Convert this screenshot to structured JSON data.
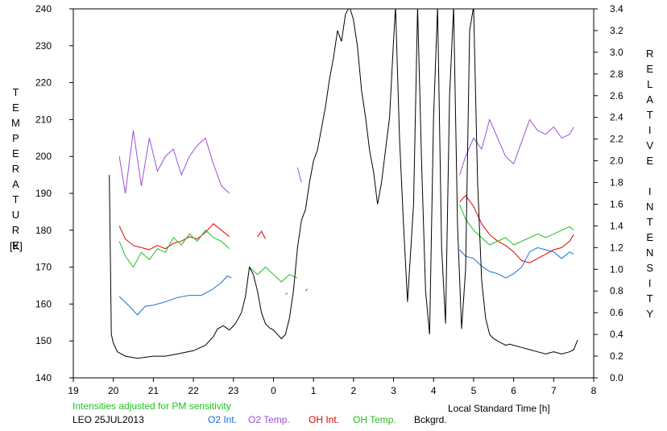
{
  "chart_data": {
    "type": "line",
    "station": "LEO",
    "date": "25JUL2013",
    "note": "Intensities adjusted for PM sensitivity",
    "xlabel": "Local Standard Time [h]",
    "ylabel_left": "TEMPERATURE",
    "ylabel_left_unit": "[K]",
    "ylabel_right": "RELATIVE INTENSITY",
    "x_ticks": [
      "19",
      "20",
      "21",
      "22",
      "23",
      "0",
      "1",
      "2",
      "3",
      "4",
      "5",
      "6",
      "7",
      "8"
    ],
    "y_left_ticks": [
      "140",
      "150",
      "160",
      "170",
      "180",
      "190",
      "200",
      "210",
      "220",
      "230",
      "240"
    ],
    "y_right_ticks": [
      "0.0",
      "0.2",
      "0.4",
      "0.6",
      "0.8",
      "1.0",
      "1.2",
      "1.4",
      "1.6",
      "1.8",
      "2.0",
      "2.2",
      "2.4",
      "2.6",
      "2.8",
      "3.0",
      "3.2",
      "3.4"
    ],
    "xlim": [
      19,
      32
    ],
    "ylim_left": [
      140,
      240
    ],
    "ylim_right": [
      0,
      3.4
    ],
    "grid": false,
    "legend_position": "bottom",
    "series": [
      {
        "name": "O2 Int.",
        "color": "#1a6fd6",
        "axis": "right",
        "segments": [
          [
            [
              20.15,
              0.75
            ],
            [
              20.4,
              0.66
            ],
            [
              20.6,
              0.58
            ],
            [
              20.8,
              0.66
            ],
            [
              21.0,
              0.67
            ],
            [
              21.3,
              0.7
            ],
            [
              21.6,
              0.74
            ],
            [
              21.9,
              0.76
            ],
            [
              22.2,
              0.76
            ],
            [
              22.5,
              0.82
            ],
            [
              22.7,
              0.88
            ],
            [
              22.85,
              0.94
            ],
            [
              22.95,
              0.92
            ]
          ],
          [
            [
              24.3,
              0.77
            ],
            [
              24.35,
              0.78
            ]
          ],
          [
            [
              24.8,
              0.8
            ],
            [
              24.85,
              0.82
            ]
          ],
          [
            [
              28.65,
              1.18
            ],
            [
              28.8,
              1.12
            ],
            [
              29.0,
              1.1
            ],
            [
              29.2,
              1.03
            ],
            [
              29.4,
              0.98
            ],
            [
              29.6,
              0.96
            ],
            [
              29.8,
              0.92
            ],
            [
              30.0,
              0.96
            ],
            [
              30.2,
              1.02
            ],
            [
              30.4,
              1.16
            ],
            [
              30.6,
              1.2
            ],
            [
              30.8,
              1.18
            ],
            [
              31.0,
              1.16
            ],
            [
              31.2,
              1.1
            ],
            [
              31.4,
              1.16
            ],
            [
              31.5,
              1.14
            ]
          ]
        ]
      },
      {
        "name": "O2 Temp.",
        "color": "#9b4fd6",
        "axis": "left",
        "segments": [
          [
            [
              20.15,
              200
            ],
            [
              20.3,
              190
            ],
            [
              20.5,
              207
            ],
            [
              20.7,
              192
            ],
            [
              20.9,
              205
            ],
            [
              21.1,
              196
            ],
            [
              21.3,
              200
            ],
            [
              21.5,
              202
            ],
            [
              21.7,
              195
            ],
            [
              21.9,
              200
            ],
            [
              22.1,
              203
            ],
            [
              22.3,
              205
            ],
            [
              22.5,
              198
            ],
            [
              22.7,
              192
            ],
            [
              22.9,
              190
            ]
          ],
          [
            [
              24.6,
              197
            ],
            [
              24.7,
              193
            ]
          ],
          [
            [
              28.65,
              195
            ],
            [
              28.8,
              200
            ],
            [
              29.0,
              205
            ],
            [
              29.2,
              202
            ],
            [
              29.4,
              210
            ],
            [
              29.6,
              205
            ],
            [
              29.8,
              200
            ],
            [
              30.0,
              198
            ],
            [
              30.2,
              204
            ],
            [
              30.4,
              210
            ],
            [
              30.6,
              207
            ],
            [
              30.8,
              206
            ],
            [
              31.0,
              208
            ],
            [
              31.2,
              205
            ],
            [
              31.4,
              206
            ],
            [
              31.5,
              208
            ]
          ]
        ]
      },
      {
        "name": "OH Int.",
        "color": "#e00000",
        "axis": "right",
        "segments": [
          [
            [
              20.15,
              1.4
            ],
            [
              20.3,
              1.28
            ],
            [
              20.5,
              1.22
            ],
            [
              20.7,
              1.2
            ],
            [
              20.9,
              1.18
            ],
            [
              21.1,
              1.22
            ],
            [
              21.3,
              1.19
            ],
            [
              21.5,
              1.24
            ],
            [
              21.7,
              1.26
            ],
            [
              21.9,
              1.3
            ],
            [
              22.1,
              1.28
            ],
            [
              22.3,
              1.34
            ],
            [
              22.5,
              1.42
            ],
            [
              22.7,
              1.36
            ],
            [
              22.9,
              1.3
            ]
          ],
          [
            [
              23.6,
              1.3
            ],
            [
              23.7,
              1.35
            ],
            [
              23.8,
              1.28
            ]
          ],
          [
            [
              28.65,
              1.62
            ],
            [
              28.8,
              1.68
            ],
            [
              29.0,
              1.58
            ],
            [
              29.2,
              1.42
            ],
            [
              29.4,
              1.32
            ],
            [
              29.6,
              1.26
            ],
            [
              29.8,
              1.22
            ],
            [
              30.0,
              1.16
            ],
            [
              30.2,
              1.08
            ],
            [
              30.4,
              1.06
            ],
            [
              30.6,
              1.1
            ],
            [
              30.8,
              1.14
            ],
            [
              31.0,
              1.18
            ],
            [
              31.2,
              1.2
            ],
            [
              31.4,
              1.26
            ],
            [
              31.5,
              1.32
            ]
          ]
        ]
      },
      {
        "name": "OH Temp.",
        "color": "#22c022",
        "axis": "left",
        "segments": [
          [
            [
              20.15,
              177
            ],
            [
              20.3,
              173
            ],
            [
              20.5,
              170
            ],
            [
              20.7,
              174
            ],
            [
              20.9,
              172
            ],
            [
              21.1,
              175
            ],
            [
              21.3,
              174
            ],
            [
              21.5,
              178
            ],
            [
              21.7,
              176
            ],
            [
              21.9,
              179
            ],
            [
              22.1,
              177
            ],
            [
              22.3,
              180
            ],
            [
              22.5,
              178
            ],
            [
              22.7,
              177
            ],
            [
              22.9,
              175
            ]
          ],
          [
            [
              23.4,
              170
            ],
            [
              23.6,
              168
            ],
            [
              23.8,
              170
            ],
            [
              24.0,
              168
            ],
            [
              24.2,
              166
            ],
            [
              24.4,
              168
            ],
            [
              24.6,
              167
            ]
          ],
          [
            [
              28.65,
              187
            ],
            [
              28.8,
              183
            ],
            [
              29.0,
              180
            ],
            [
              29.2,
              178
            ],
            [
              29.4,
              176
            ],
            [
              29.6,
              177
            ],
            [
              29.8,
              178
            ],
            [
              30.0,
              176
            ],
            [
              30.2,
              177
            ],
            [
              30.4,
              178
            ],
            [
              30.6,
              179
            ],
            [
              30.8,
              178
            ],
            [
              31.0,
              179
            ],
            [
              31.2,
              180
            ],
            [
              31.4,
              181
            ],
            [
              31.5,
              180
            ]
          ]
        ]
      },
      {
        "name": "Bckgrd.",
        "color": "#000000",
        "axis": "right",
        "segments": [
          [
            [
              19.9,
              1.87
            ],
            [
              19.95,
              0.4
            ],
            [
              20.0,
              0.32
            ],
            [
              20.1,
              0.24
            ],
            [
              20.3,
              0.2
            ],
            [
              20.6,
              0.18
            ],
            [
              21.0,
              0.2
            ],
            [
              21.3,
              0.2
            ],
            [
              21.6,
              0.22
            ],
            [
              22.0,
              0.25
            ],
            [
              22.3,
              0.3
            ],
            [
              22.5,
              0.38
            ],
            [
              22.6,
              0.45
            ],
            [
              22.75,
              0.48
            ],
            [
              22.9,
              0.44
            ],
            [
              23.05,
              0.5
            ],
            [
              23.2,
              0.6
            ],
            [
              23.3,
              0.75
            ],
            [
              23.4,
              1.02
            ],
            [
              23.5,
              0.95
            ],
            [
              23.6,
              0.8
            ],
            [
              23.7,
              0.6
            ],
            [
              23.8,
              0.5
            ],
            [
              23.9,
              0.46
            ],
            [
              24.0,
              0.44
            ],
            [
              24.1,
              0.4
            ],
            [
              24.2,
              0.36
            ],
            [
              24.3,
              0.4
            ],
            [
              24.4,
              0.55
            ],
            [
              24.5,
              0.8
            ],
            [
              24.6,
              1.2
            ],
            [
              24.7,
              1.45
            ],
            [
              24.8,
              1.55
            ],
            [
              24.9,
              1.8
            ],
            [
              25.0,
              2.0
            ],
            [
              25.1,
              2.1
            ],
            [
              25.2,
              2.3
            ],
            [
              25.3,
              2.5
            ],
            [
              25.4,
              2.75
            ],
            [
              25.5,
              2.95
            ],
            [
              25.6,
              3.2
            ],
            [
              25.7,
              3.1
            ],
            [
              25.8,
              3.35
            ],
            [
              25.9,
              3.42
            ],
            [
              26.0,
              3.3
            ],
            [
              26.1,
              3.05
            ],
            [
              26.2,
              2.65
            ],
            [
              26.3,
              2.4
            ],
            [
              26.4,
              2.1
            ],
            [
              26.5,
              1.9
            ],
            [
              26.6,
              1.6
            ],
            [
              26.7,
              1.8
            ],
            [
              26.8,
              2.1
            ],
            [
              26.9,
              2.4
            ],
            [
              27.0,
              3.1
            ],
            [
              27.05,
              3.42
            ],
            [
              27.15,
              2.2
            ],
            [
              27.25,
              1.4
            ],
            [
              27.35,
              0.7
            ],
            [
              27.5,
              1.6
            ],
            [
              27.6,
              3.42
            ],
            [
              27.7,
              2.0
            ],
            [
              27.8,
              0.8
            ],
            [
              27.9,
              0.4
            ],
            [
              28.0,
              2.4
            ],
            [
              28.1,
              3.42
            ],
            [
              28.2,
              1.2
            ],
            [
              28.3,
              0.5
            ],
            [
              28.4,
              2.6
            ],
            [
              28.5,
              3.42
            ],
            [
              28.6,
              1.4
            ],
            [
              28.7,
              0.45
            ],
            [
              28.8,
              1.0
            ],
            [
              28.9,
              3.2
            ],
            [
              29.0,
              3.42
            ],
            [
              29.1,
              1.8
            ],
            [
              29.2,
              0.9
            ],
            [
              29.3,
              0.55
            ],
            [
              29.4,
              0.4
            ],
            [
              29.5,
              0.36
            ],
            [
              29.6,
              0.34
            ],
            [
              29.7,
              0.32
            ],
            [
              29.8,
              0.3
            ],
            [
              29.9,
              0.31
            ],
            [
              30.0,
              0.3
            ],
            [
              30.2,
              0.28
            ],
            [
              30.4,
              0.26
            ],
            [
              30.6,
              0.24
            ],
            [
              30.8,
              0.22
            ],
            [
              31.0,
              0.24
            ],
            [
              31.2,
              0.22
            ],
            [
              31.4,
              0.24
            ],
            [
              31.5,
              0.26
            ],
            [
              31.6,
              0.35
            ]
          ]
        ]
      }
    ]
  }
}
